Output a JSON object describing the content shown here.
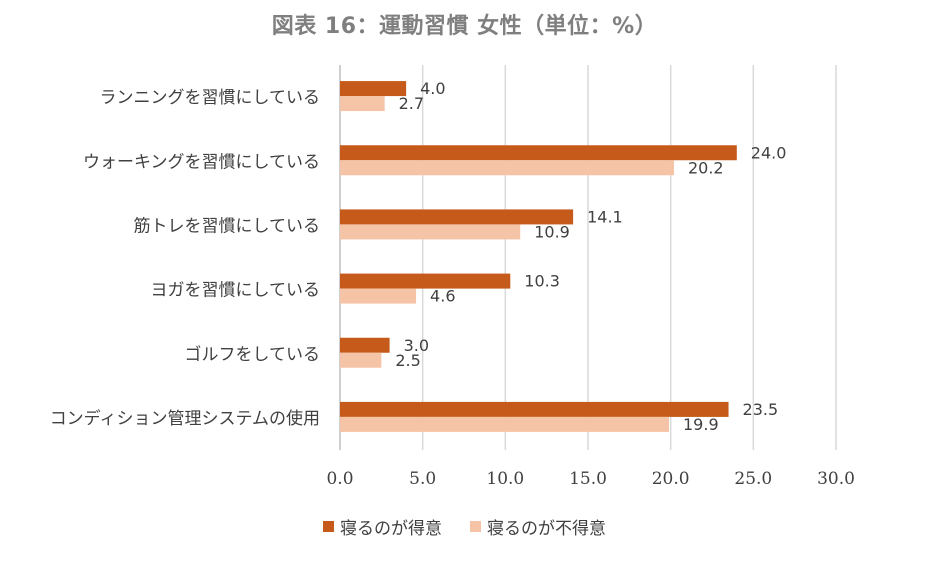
{
  "title": "図表 16：運動習慣 女性（単位：%）",
  "colors": {
    "series1": "#c55a1a",
    "series2": "#f5c3a5",
    "grid": "#d9d9d9"
  },
  "chart_data": {
    "type": "bar",
    "orientation": "horizontal",
    "title": "図表 16：運動習慣 女性（単位：%）",
    "categories": [
      "ランニングを習慣にしている",
      "ウォーキングを習慣にしている",
      "筋トレを習慣にしている",
      "ヨガを習慣にしている",
      "ゴルフをしている",
      "コンディション管理システムの使用"
    ],
    "series": [
      {
        "name": "寝るのが得意",
        "values": [
          4.0,
          24.0,
          14.1,
          10.3,
          3.0,
          23.5
        ]
      },
      {
        "name": "寝るのが不得意",
        "values": [
          2.7,
          20.2,
          10.9,
          4.6,
          2.5,
          19.9
        ]
      }
    ],
    "xlim": [
      0,
      30
    ],
    "xticks": [
      "0.0",
      "5.0",
      "10.0",
      "15.0",
      "20.0",
      "25.0",
      "30.0"
    ],
    "grid": true,
    "legend": "bottom"
  }
}
